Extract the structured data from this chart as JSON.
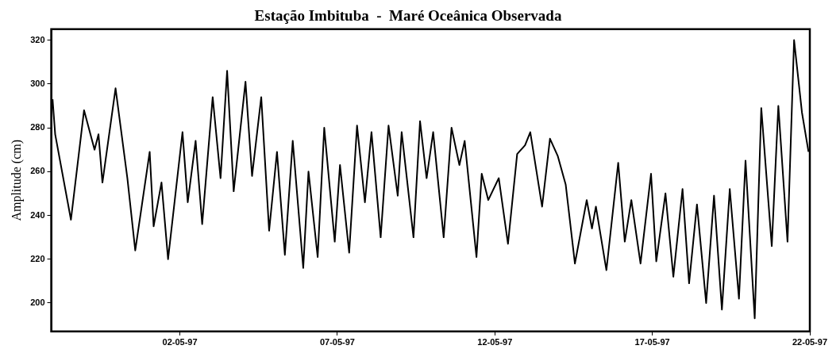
{
  "chart_data": {
    "type": "line",
    "title": "Estação Imbituba  -  Maré Oceânica Observada",
    "ylabel": "Amplitude (cm)",
    "xlim": [
      "1997-04-27T22:00",
      "1997-05-22T00:00"
    ],
    "xticks": [
      {
        "value": "1997-05-02",
        "label": "02-05-97"
      },
      {
        "value": "1997-05-07",
        "label": "07-05-97"
      },
      {
        "value": "1997-05-12",
        "label": "12-05-97"
      },
      {
        "value": "1997-05-17",
        "label": "17-05-97"
      },
      {
        "value": "1997-05-22",
        "label": "22-05-97"
      }
    ],
    "ylim": [
      187,
      325
    ],
    "yticks": [
      200,
      220,
      240,
      260,
      280,
      300,
      320
    ],
    "marker": "none",
    "line_style": "solid",
    "series": [
      {
        "color": "#000000",
        "x": [
          "1997-04-27T23:00",
          "1997-04-28T01:00",
          "1997-04-28T13:00",
          "1997-04-28T23:00",
          "1997-04-29T07:00",
          "1997-04-29T10:00",
          "1997-04-29T13:00",
          "1997-04-29T23:00",
          "1997-04-30T08:00",
          "1997-04-30T14:00",
          "1997-05-01T01:00",
          "1997-05-01T04:00",
          "1997-05-01T10:00",
          "1997-05-01T15:00",
          "1997-05-02T02:00",
          "1997-05-02T06:00",
          "1997-05-02T12:00",
          "1997-05-02T17:00",
          "1997-05-03T01:00",
          "1997-05-03T07:00",
          "1997-05-03T12:00",
          "1997-05-03T17:00",
          "1997-05-04T02:00",
          "1997-05-04T07:00",
          "1997-05-04T14:00",
          "1997-05-04T20:00",
          "1997-05-05T02:00",
          "1997-05-05T08:00",
          "1997-05-05T14:00",
          "1997-05-05T22:00",
          "1997-05-06T02:00",
          "1997-05-06T09:00",
          "1997-05-06T14:00",
          "1997-05-06T22:00",
          "1997-05-07T02:00",
          "1997-05-07T09:00",
          "1997-05-07T15:00",
          "1997-05-07T21:00",
          "1997-05-08T02:00",
          "1997-05-08T09:00",
          "1997-05-08T15:00",
          "1997-05-08T22:00",
          "1997-05-09T01:00",
          "1997-05-09T10:00",
          "1997-05-09T15:00",
          "1997-05-09T20:00",
          "1997-05-10T01:00",
          "1997-05-10T09:00",
          "1997-05-10T15:00",
          "1997-05-10T21:00",
          "1997-05-11T01:00",
          "1997-05-11T10:00",
          "1997-05-11T14:00",
          "1997-05-11T19:00",
          "1997-05-12T03:00",
          "1997-05-12T10:00",
          "1997-05-12T17:00",
          "1997-05-12T23:00",
          "1997-05-13T03:00",
          "1997-05-13T12:00",
          "1997-05-13T18:00",
          "1997-05-14T00:00",
          "1997-05-14T06:00",
          "1997-05-14T13:00",
          "1997-05-14T22:00",
          "1997-05-15T02:00",
          "1997-05-15T05:00",
          "1997-05-15T13:00",
          "1997-05-15T22:00",
          "1997-05-16T03:00",
          "1997-05-16T08:00",
          "1997-05-16T15:00",
          "1997-05-16T23:00",
          "1997-05-17T03:00",
          "1997-05-17T10:00",
          "1997-05-17T16:00",
          "1997-05-17T23:00",
          "1997-05-18T04:00",
          "1997-05-18T10:00",
          "1997-05-18T17:00",
          "1997-05-18T23:00",
          "1997-05-19T05:00",
          "1997-05-19T11:00",
          "1997-05-19T18:00",
          "1997-05-19T23:00",
          "1997-05-20T06:00",
          "1997-05-20T11:00",
          "1997-05-20T19:00",
          "1997-05-21T00:00",
          "1997-05-21T07:00",
          "1997-05-21T12:00",
          "1997-05-21T18:00",
          "1997-05-21T23:00"
        ],
        "values": [
          293,
          277,
          238,
          288,
          270,
          277,
          255,
          298,
          257,
          224,
          269,
          235,
          255,
          220,
          278,
          246,
          274,
          236,
          294,
          257,
          306,
          251,
          301,
          258,
          294,
          233,
          269,
          222,
          274,
          216,
          260,
          221,
          280,
          228,
          263,
          223,
          281,
          246,
          278,
          230,
          281,
          249,
          278,
          230,
          283,
          257,
          278,
          230,
          280,
          263,
          274,
          221,
          259,
          247,
          257,
          227,
          268,
          272,
          278,
          244,
          275,
          267,
          254,
          218,
          247,
          234,
          244,
          215,
          264,
          228,
          247,
          218,
          259,
          219,
          250,
          212,
          252,
          209,
          245,
          200,
          249,
          197,
          252,
          202,
          265,
          193,
          289,
          226,
          290,
          228,
          320,
          287,
          269
        ]
      }
    ]
  }
}
